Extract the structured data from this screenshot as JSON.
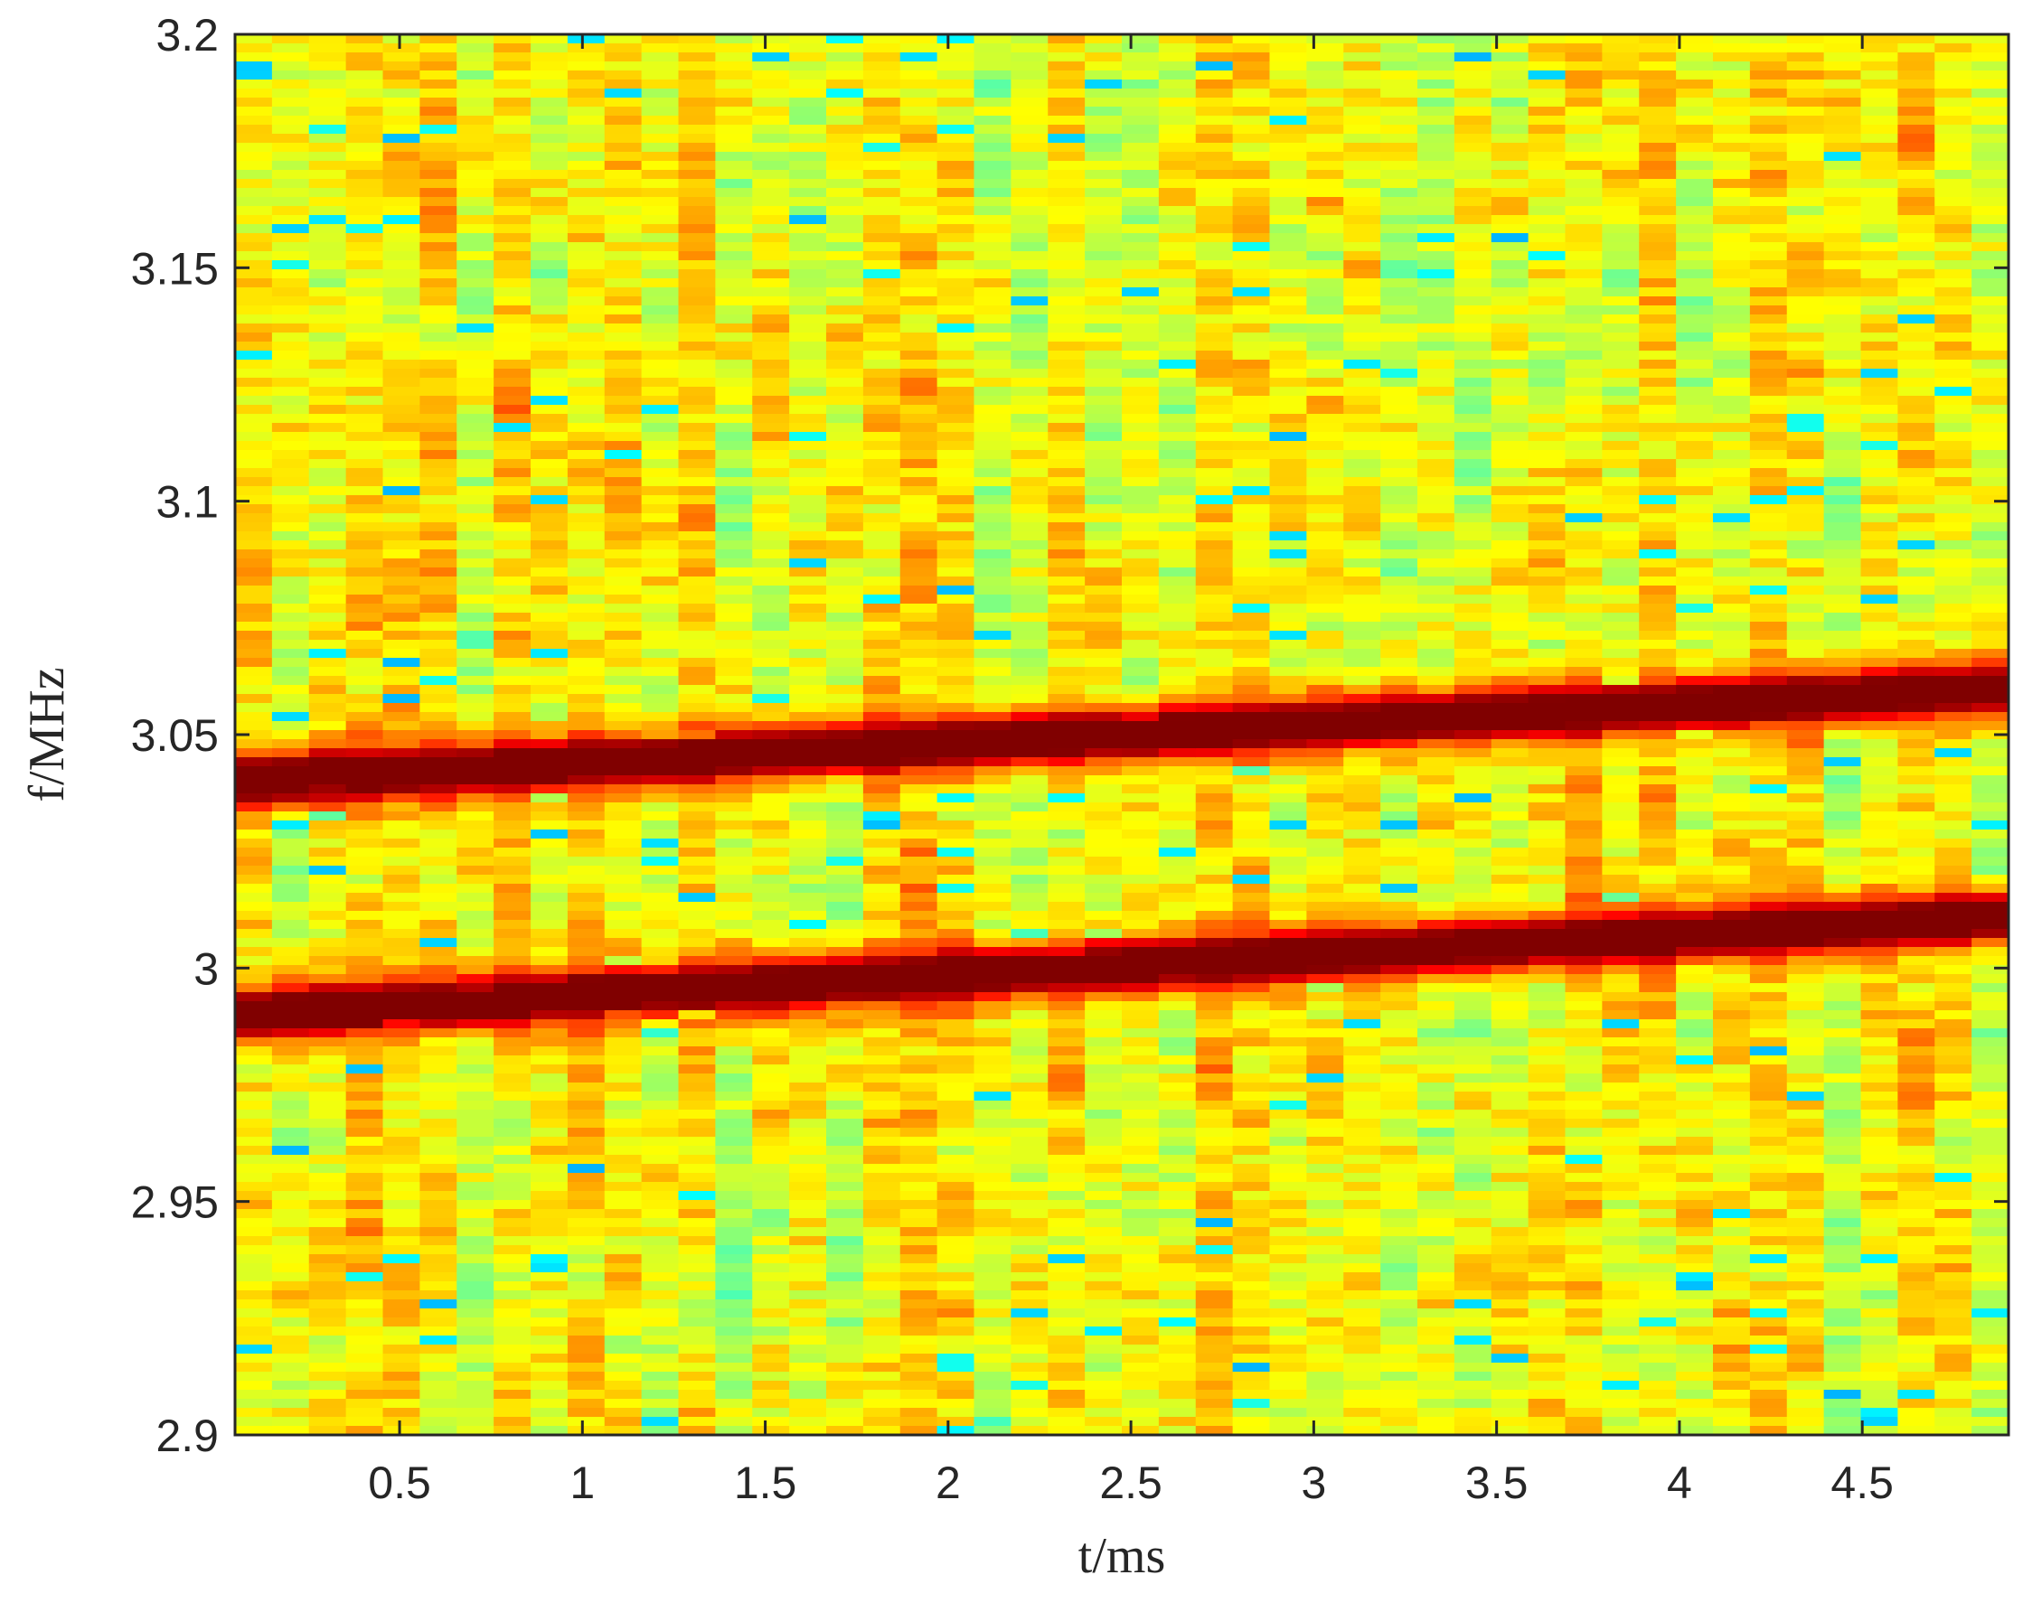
{
  "chart_data": {
    "type": "heatmap",
    "title": "",
    "xlabel": "t/ms",
    "ylabel": "f/MHz",
    "xlim": [
      0.05,
      4.9
    ],
    "ylim": [
      2.9,
      3.2
    ],
    "xticks": [
      0.5,
      1,
      1.5,
      2,
      2.5,
      3,
      3.5,
      4,
      4.5
    ],
    "xtick_labels": [
      "0.5",
      "1",
      "1.5",
      "2",
      "2.5",
      "3",
      "3.5",
      "4",
      "4.5"
    ],
    "yticks": [
      2.9,
      2.95,
      3,
      3.05,
      3.1,
      3.15,
      3.2
    ],
    "ytick_labels": [
      "2.9",
      "2.95",
      "3",
      "3.05",
      "3.1",
      "3.15",
      "3.2"
    ],
    "colormap": "jet",
    "grid": false,
    "time_bins": 48,
    "background": "random noise (mostly yellow/orange/cyan)",
    "series": [
      {
        "name": "",
        "t": [
          0.05,
          4.9
        ],
        "f": [
          2.99,
          3.011
        ],
        "bandwidth_mhz": 0.012
      },
      {
        "name": "",
        "t": [
          0.05,
          4.9
        ],
        "f": [
          3.04,
          3.06
        ],
        "bandwidth_mhz": 0.012
      }
    ]
  }
}
